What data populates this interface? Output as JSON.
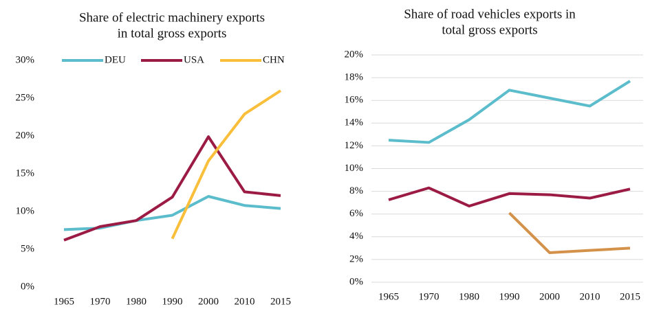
{
  "chart_data": [
    {
      "type": "line",
      "title": [
        "Share of electric machinery exports",
        "in total gross exports"
      ],
      "categories": [
        "1965",
        "1970",
        "1980",
        "1990",
        "2000",
        "2010",
        "2015"
      ],
      "series": [
        {
          "name": "DEU",
          "color": "#5bbccc",
          "values": [
            7.6,
            7.8,
            8.8,
            9.5,
            12.0,
            10.8,
            10.4
          ]
        },
        {
          "name": "USA",
          "color": "#9b1b45",
          "values": [
            6.2,
            8.0,
            8.8,
            11.9,
            19.9,
            12.6,
            12.1
          ]
        },
        {
          "name": "CHN",
          "color": "#f9bf3b",
          "values": [
            null,
            null,
            null,
            6.4,
            16.7,
            22.9,
            26.0
          ]
        }
      ],
      "ylim": [
        0,
        30
      ],
      "yticks": [
        {
          "value": 0,
          "label": "0%"
        },
        {
          "value": 5,
          "label": "5%"
        },
        {
          "value": 10,
          "label": "10%"
        },
        {
          "value": 15,
          "label": "15%"
        },
        {
          "value": 20,
          "label": "20%"
        },
        {
          "value": 25,
          "label": "25%"
        },
        {
          "value": 30,
          "label": "30%"
        }
      ],
      "grid": false,
      "legend": "top"
    },
    {
      "type": "line",
      "title": [
        "Share of road vehicles exports in",
        "total gross exports"
      ],
      "categories": [
        "1965",
        "1970",
        "1980",
        "1990",
        "2000",
        "2010",
        "2015"
      ],
      "series": [
        {
          "color": "#5bbccc",
          "values": [
            12.5,
            12.3,
            14.3,
            16.9,
            16.2,
            15.5,
            17.7
          ]
        },
        {
          "color": "#9b1b45",
          "values": [
            7.25,
            8.3,
            6.7,
            7.8,
            7.7,
            7.4,
            8.2
          ]
        },
        {
          "color": "#d4914a",
          "values": [
            null,
            null,
            null,
            6.1,
            2.6,
            2.8,
            3.0
          ]
        }
      ],
      "ylim": [
        0,
        20
      ],
      "yticks": [
        {
          "value": 0,
          "label": "0%"
        },
        {
          "value": 2,
          "label": "2%"
        },
        {
          "value": 4,
          "label": "4%"
        },
        {
          "value": 6,
          "label": "6%"
        },
        {
          "value": 8,
          "label": "8%"
        },
        {
          "value": 10,
          "label": "10%"
        },
        {
          "value": 12,
          "label": "12%"
        },
        {
          "value": 14,
          "label": "14%"
        },
        {
          "value": 16,
          "label": "16%"
        },
        {
          "value": 18,
          "label": "18%"
        },
        {
          "value": 20,
          "label": "20%"
        }
      ],
      "grid": true
    }
  ]
}
